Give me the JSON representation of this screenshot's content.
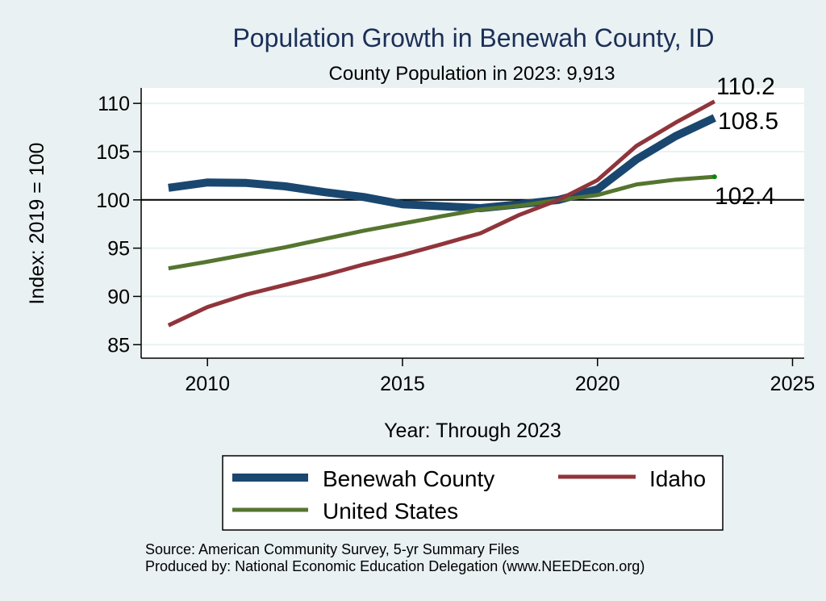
{
  "chart_data": {
    "type": "line",
    "title": "Population Growth in Benewah County, ID",
    "subtitle": "County Population in 2023: 9,913",
    "xlabel": "Year: Through 2023",
    "ylabel": "Index: 2019 = 100",
    "xlim": [
      2008.3,
      2025.3
    ],
    "ylim": [
      83.6,
      111.6
    ],
    "x_ticks": [
      2010,
      2015,
      2020,
      2025
    ],
    "y_ticks": [
      85,
      90,
      95,
      100,
      105,
      110
    ],
    "reference_line": 100,
    "grid": true,
    "x": [
      2009,
      2010,
      2011,
      2012,
      2013,
      2014,
      2015,
      2016,
      2017,
      2018,
      2019,
      2020,
      2021,
      2022,
      2023
    ],
    "series": [
      {
        "name": "Benewah  County",
        "color": "#1a476f",
        "values": [
          101.25,
          101.8,
          101.75,
          101.4,
          100.8,
          100.3,
          99.55,
          99.35,
          99.15,
          99.55,
          100.0,
          101.1,
          104.2,
          106.6,
          108.5
        ],
        "end_label": "108.5"
      },
      {
        "name": "Idaho",
        "color": "#90353b",
        "values": [
          87.0,
          88.9,
          90.2,
          91.2,
          92.2,
          93.3,
          94.3,
          95.4,
          96.55,
          98.45,
          100.0,
          102.05,
          105.6,
          108.0,
          110.2
        ],
        "end_label": "110.2"
      },
      {
        "name": "United States",
        "color": "#55752f",
        "values": [
          92.9,
          93.6,
          94.35,
          95.1,
          95.95,
          96.8,
          97.55,
          98.3,
          99.0,
          99.4,
          100.0,
          100.5,
          101.6,
          102.1,
          102.4
        ],
        "end_label": "102.4"
      }
    ],
    "legend": {
      "position": "bottom",
      "entries": [
        "Benewah  County",
        "Idaho",
        "United States"
      ]
    }
  },
  "footer": {
    "source": "Source: American Community Survey, 5-yr Summary Files",
    "producer": "Produced by: National Economic Education Delegation (www.NEEDEcon.org)"
  }
}
